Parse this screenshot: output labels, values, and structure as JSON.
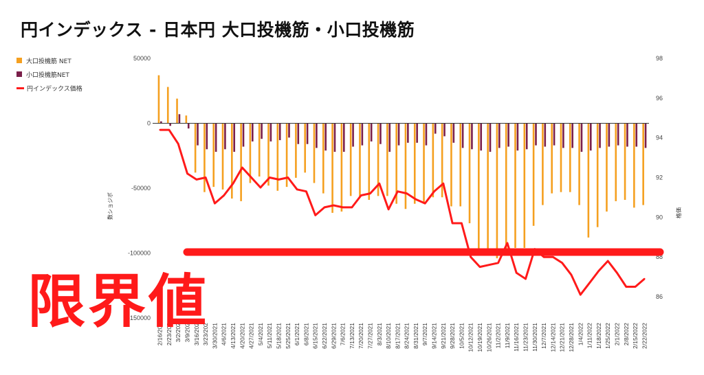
{
  "chart_data": {
    "type": "bar",
    "title": "円インデックス - 日本円 大口投機筋・小口投機筋",
    "ylabel": "数ショジポ",
    "y2label": "格価",
    "ylim": [
      -150000,
      50000
    ],
    "y2lim": [
      85,
      98
    ],
    "yticks": [
      50000,
      0,
      -50000,
      -100000,
      -150000
    ],
    "ytick_labels": [
      "50000",
      "0",
      "-50000",
      "-100000",
      "-150000"
    ],
    "y2ticks": [
      98,
      96,
      94,
      92,
      90,
      88,
      86
    ],
    "grid": false,
    "legend_position": "top-left",
    "categories": [
      "2/16/2021",
      "2/23/2021",
      "3/2/2021",
      "3/9/2021",
      "3/16/2021",
      "3/23/2021",
      "3/30/2021",
      "4/6/2021",
      "4/13/2021",
      "4/20/2021",
      "4/27/2021",
      "5/4/2021",
      "5/11/2021",
      "5/18/2021",
      "5/25/2021",
      "6/1/2021",
      "6/8/2021",
      "6/15/2021",
      "6/22/2021",
      "6/29/2021",
      "7/6/2021",
      "7/13/2021",
      "7/20/2021",
      "7/27/2021",
      "8/3/2021",
      "8/10/2021",
      "8/17/2021",
      "8/24/2021",
      "8/31/2021",
      "9/7/2021",
      "9/14/2021",
      "9/21/2021",
      "9/28/2021",
      "10/5/2021",
      "10/12/2021",
      "10/19/2021",
      "10/26/2021",
      "11/2/2021",
      "11/9/2021",
      "11/16/2021",
      "11/23/2021",
      "11/30/2021",
      "12/7/2021",
      "12/14/2021",
      "12/21/2021",
      "12/28/2021",
      "1/4/2022",
      "1/11/2022",
      "1/18/2022",
      "1/25/2022",
      "2/1/2022",
      "2/8/2022",
      "2/15/2022",
      "2/22/2022"
    ],
    "x_tick_labels": [
      "2/16/202",
      "2/23/202",
      "3/2/202",
      "3/9/202",
      "3/16/202",
      "3/23/202",
      "3/30/2021",
      "4/6/2021",
      "4/13/2021",
      "4/20/2021",
      "4/27/2021",
      "5/4/2021",
      "5/11/2021",
      "5/18/2021",
      "5/25/2021",
      "6/1/2021",
      "6/8/2021",
      "6/15/2021",
      "6/22/2021",
      "6/29/2021",
      "7/6/2021",
      "7/13/2021",
      "7/20/2021",
      "7/27/2021",
      "8/3/2021",
      "8/10/2021",
      "8/17/2021",
      "8/24/2021",
      "8/31/2021",
      "9/7/2021",
      "9/14/2021",
      "9/21/2021",
      "9/28/2021",
      "10/5/2021",
      "10/12/2021",
      "10/19/2021",
      "10/26/2021",
      "11/2/2021",
      "11/9/2021",
      "11/16/2021",
      "11/23/2021",
      "11/30/2021",
      "12/7/2021",
      "12/14/2021",
      "12/21/2021",
      "12/28/2021",
      "1/4/2022",
      "1/11/2022",
      "1/18/2022",
      "1/25/2022",
      "2/1/2022",
      "2/8/2022",
      "2/15/2022",
      "2/22/2022"
    ],
    "series": [
      {
        "name": "大口投機筋  NET",
        "type": "bar",
        "axis": "left",
        "color": "#f5a020",
        "values": [
          37000,
          28000,
          19000,
          6000,
          -38000,
          -53000,
          -49000,
          -51000,
          -58000,
          -60000,
          -46000,
          -41000,
          -48000,
          -52000,
          -49000,
          -42000,
          -38000,
          -46000,
          -54000,
          -69000,
          -68000,
          -56000,
          -57000,
          -59000,
          -56000,
          -56000,
          -62000,
          -66000,
          -62000,
          -61000,
          -57000,
          -57000,
          -64000,
          -64000,
          -77000,
          -100000,
          -102000,
          -104000,
          -102000,
          -96000,
          -96000,
          -79000,
          -63000,
          -54000,
          -53000,
          -53000,
          -63000,
          -88000,
          -80000,
          -68000,
          -60000,
          -59000,
          -65000,
          -63000
        ]
      },
      {
        "name": "小口投機筋NET",
        "type": "bar",
        "axis": "left",
        "color": "#7a1f4a",
        "values": [
          1500,
          -2000,
          7000,
          -4000,
          -17000,
          -20000,
          -22000,
          -20000,
          -22000,
          -18000,
          -14000,
          -12000,
          -14000,
          -13000,
          -11000,
          -16000,
          -16000,
          -19000,
          -21000,
          -22000,
          -22000,
          -18000,
          -17000,
          -14000,
          -16000,
          -22000,
          -17000,
          -15000,
          -15000,
          -17000,
          -8000,
          -10000,
          -15000,
          -19000,
          -20000,
          -21000,
          -22000,
          -19000,
          -18000,
          -21000,
          -20000,
          -17000,
          -18000,
          -17000,
          -19000,
          -19000,
          -22000,
          -21000,
          -19000,
          -18000,
          -17000,
          -18000,
          -18000,
          -19000
        ]
      },
      {
        "name": "円インデックス価格",
        "type": "line",
        "axis": "right",
        "color": "#ff1a1a",
        "values": [
          94.4,
          94.4,
          93.7,
          92.2,
          91.9,
          92.0,
          90.7,
          91.1,
          91.7,
          92.5,
          92.0,
          91.5,
          92.0,
          91.9,
          92.0,
          91.4,
          91.3,
          90.1,
          90.5,
          90.6,
          90.5,
          90.5,
          91.1,
          91.2,
          91.7,
          90.4,
          91.3,
          91.2,
          90.9,
          90.7,
          91.3,
          91.7,
          89.7,
          89.7,
          88.0,
          87.5,
          87.6,
          87.7,
          88.7,
          87.2,
          86.9,
          88.4,
          88.0,
          88.0,
          87.7,
          87.1,
          86.1,
          86.7,
          87.3,
          87.8,
          87.2,
          86.5,
          86.5,
          86.9
        ]
      }
    ],
    "annotations": [
      {
        "type": "hline",
        "axis": "left",
        "value": -100000,
        "color": "#ff1a1a"
      },
      {
        "type": "text",
        "text": "限界値",
        "color": "#ff1a1a"
      }
    ]
  }
}
